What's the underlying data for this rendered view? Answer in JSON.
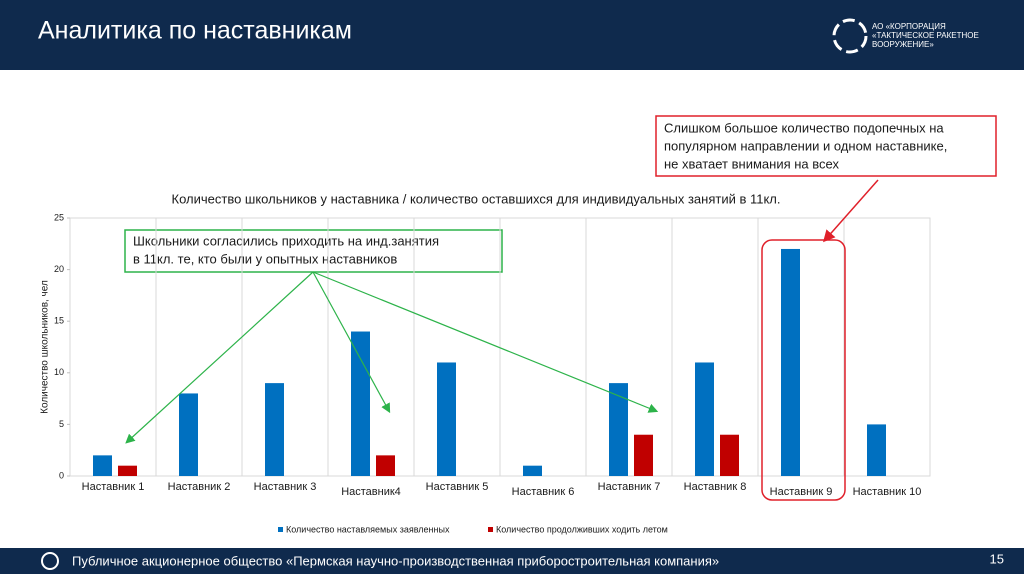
{
  "header": {
    "title": "Аналитика по наставникам",
    "logo_lines": [
      "АО «КОРПОРАЦИЯ",
      "«ТАКТИЧЕСКОЕ РАКЕТНОЕ",
      "ВООРУЖЕНИЕ»"
    ]
  },
  "chart_data": {
    "type": "bar",
    "title": "Количество школьников у наставника / количество оставшихся для индивидуальных занятий в 11кл.",
    "y_label": "Количество школьников, чел",
    "categories": [
      "Наставник 1",
      "Наставник 2",
      "Наставник 3",
      "Наставник4",
      "Наставник 5",
      "Наставник 6",
      "Наставник 7",
      "Наставник 8",
      "Наставник 9",
      "Наставник 10"
    ],
    "series": [
      {
        "name": "Количество наставляемых заявленных",
        "color": "#0070c0",
        "values": [
          2,
          8,
          9,
          14,
          11,
          1,
          9,
          11,
          22,
          5
        ]
      },
      {
        "name": "Количество продолживших ходить летом",
        "color": "#c00000",
        "values": [
          1,
          0,
          0,
          2,
          0,
          0,
          4,
          4,
          0,
          0
        ]
      }
    ],
    "ylim": [
      0,
      25
    ],
    "yticks": [
      0,
      5,
      10,
      15,
      20,
      25
    ],
    "annotations": [
      {
        "lines": [
          "Школьники согласились приходить на инд.занятия",
          "в 11кл. те, кто были у опытных наставников"
        ]
      },
      {
        "lines": [
          "Слишком большое количество подопечных на",
          "популярном направлении и одном наставнике,",
          "не хватает внимания на всех"
        ]
      }
    ]
  },
  "footer": {
    "text": "Публичное акционерное общество «Пермская научно-производственная приборостроительная компания»",
    "page": 15
  }
}
